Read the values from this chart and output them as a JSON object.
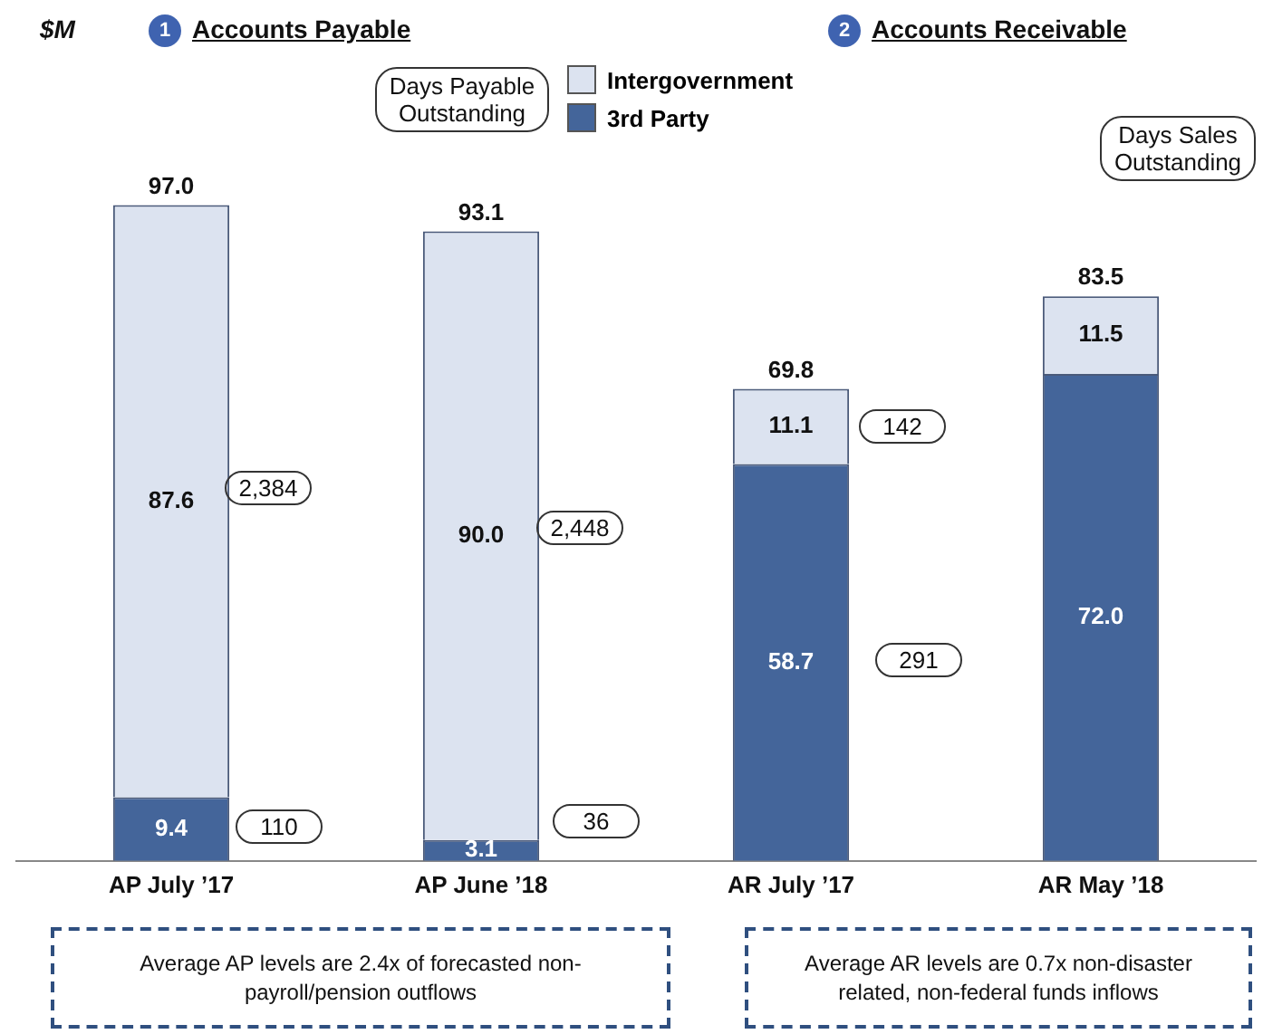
{
  "chart_data": {
    "type": "bar",
    "stacked": true,
    "legend": "top",
    "grid": false,
    "categories": [
      "AP July ’17",
      "AP June ’18",
      "AR July ’17",
      "AR May ’18"
    ],
    "series": [
      {
        "name": "3rd Party",
        "color": "#44659a",
        "values": [
          9.4,
          3.1,
          58.7,
          72.0
        ],
        "value_labels": [
          "9.4",
          "3.1",
          "58.7",
          "72.0"
        ]
      },
      {
        "name": "Intergovernment",
        "color": "#dce3f0",
        "values": [
          87.6,
          90.0,
          11.1,
          11.5
        ],
        "value_labels": [
          "87.6",
          "90.0",
          "11.1",
          "11.5"
        ]
      }
    ],
    "totals": [
      "97.0",
      "93.1",
      "69.8",
      "83.5"
    ],
    "annotations": [
      "$M",
      "1",
      "Accounts Payable",
      "2",
      "Accounts Receivable",
      "Days Payable Outstanding",
      "Days Sales Outstanding",
      "Average AP levels are 2.4x of forecasted non-payroll/pension outflows",
      "Average AR levels are 0.7x non-disaster related, non-federal funds inflows",
      "2,384",
      "110",
      "2,448",
      "36",
      "142",
      "291"
    ]
  }
}
